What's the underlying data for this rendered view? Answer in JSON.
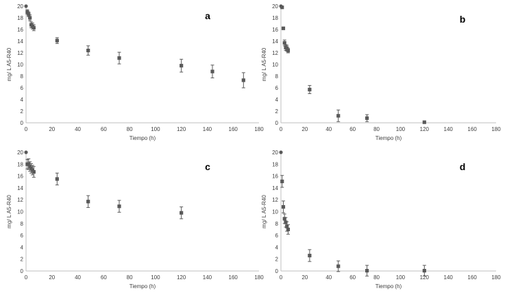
{
  "colors": {
    "marker": "#595959",
    "axis": "#bfbfbf",
    "text": "#404040"
  },
  "chart_data": [
    {
      "type": "scatter",
      "letter": "a",
      "title": "",
      "xlabel": "Tiempo  (h)",
      "ylabel": "mg/ L A5-R40",
      "xlim": [
        0,
        180
      ],
      "ylim": [
        0,
        20
      ],
      "xticks": [
        "0",
        "20",
        "40",
        "60",
        "80",
        "100",
        "120",
        "140",
        "160",
        "180"
      ],
      "yticks": [
        "0",
        "2",
        "4",
        "6",
        "8",
        "10",
        "12",
        "14",
        "16",
        "18",
        "20"
      ],
      "x": [
        0,
        1,
        2,
        3,
        4,
        5,
        6,
        24,
        48,
        72,
        120,
        144,
        168
      ],
      "y": [
        20,
        19,
        18.6,
        18.0,
        16.8,
        16.6,
        16.3,
        14.1,
        12.4,
        11.1,
        9.8,
        8.8,
        7.3
      ],
      "yerr": [
        0,
        0.4,
        0.4,
        0.5,
        0.5,
        0.5,
        0.5,
        0.5,
        0.8,
        1.0,
        1.1,
        1.1,
        1.3
      ]
    },
    {
      "type": "scatter",
      "letter": "b",
      "title": "",
      "xlabel": "Tiempo  (h)",
      "ylabel": "mg/ L A5-R40",
      "xlim": [
        0,
        180
      ],
      "ylim": [
        0,
        20
      ],
      "xticks": [
        "0",
        "20",
        "40",
        "60",
        "80",
        "100",
        "120",
        "140",
        "160",
        "180"
      ],
      "yticks": [
        "0",
        "2",
        "4",
        "6",
        "8",
        "10",
        "12",
        "14",
        "16",
        "18",
        "20"
      ],
      "x": [
        0,
        1,
        2,
        3,
        4,
        5,
        6,
        24,
        48,
        72,
        120
      ],
      "y": [
        20,
        19.8,
        16.2,
        13.7,
        12.9,
        12.8,
        12.4,
        5.7,
        1.2,
        0.8,
        0.1
      ],
      "yerr": [
        0,
        0,
        0,
        0.5,
        0.5,
        0.5,
        0.4,
        0.7,
        1.0,
        0.6,
        0
      ]
    },
    {
      "type": "scatter",
      "letter": "c",
      "title": "",
      "xlabel": "Tiempo  (h)",
      "ylabel": "mg/ L A5-R40",
      "xlim": [
        0,
        180
      ],
      "ylim": [
        0,
        20
      ],
      "xticks": [
        "0",
        "20",
        "40",
        "60",
        "80",
        "100",
        "120",
        "140",
        "160",
        "180"
      ],
      "yticks": [
        "0",
        "2",
        "4",
        "6",
        "8",
        "10",
        "12",
        "14",
        "16",
        "18",
        "20"
      ],
      "x": [
        0,
        1,
        2,
        3,
        4,
        5,
        6,
        24,
        48,
        72,
        120
      ],
      "y": [
        20,
        18.0,
        18.0,
        17.6,
        17.3,
        17.0,
        16.7,
        15.5,
        11.7,
        10.9,
        9.8
      ],
      "yerr": [
        0,
        0.8,
        0.9,
        0.8,
        0.8,
        0.8,
        0.9,
        1.0,
        1.0,
        1.0,
        1.0
      ]
    },
    {
      "type": "scatter",
      "letter": "d",
      "title": "",
      "xlabel": "Tiempo  (h)",
      "ylabel": "mg/ L A5-R40",
      "xlim": [
        0,
        180
      ],
      "ylim": [
        0,
        20
      ],
      "xticks": [
        "0",
        "20",
        "40",
        "60",
        "80",
        "100",
        "120",
        "140",
        "160",
        "180"
      ],
      "yticks": [
        "0",
        "2",
        "4",
        "6",
        "8",
        "10",
        "12",
        "14",
        "16",
        "18",
        "20"
      ],
      "x": [
        0,
        1,
        2,
        3,
        4,
        5,
        6,
        24,
        48,
        72,
        120
      ],
      "y": [
        20,
        15.1,
        10.8,
        8.8,
        8.2,
        7.5,
        7.0,
        2.6,
        0.8,
        0.05,
        0.05
      ],
      "yerr": [
        0,
        1.0,
        1.0,
        0.8,
        0.8,
        0.8,
        0.8,
        1.0,
        0.9,
        0.9,
        0.9
      ]
    }
  ]
}
